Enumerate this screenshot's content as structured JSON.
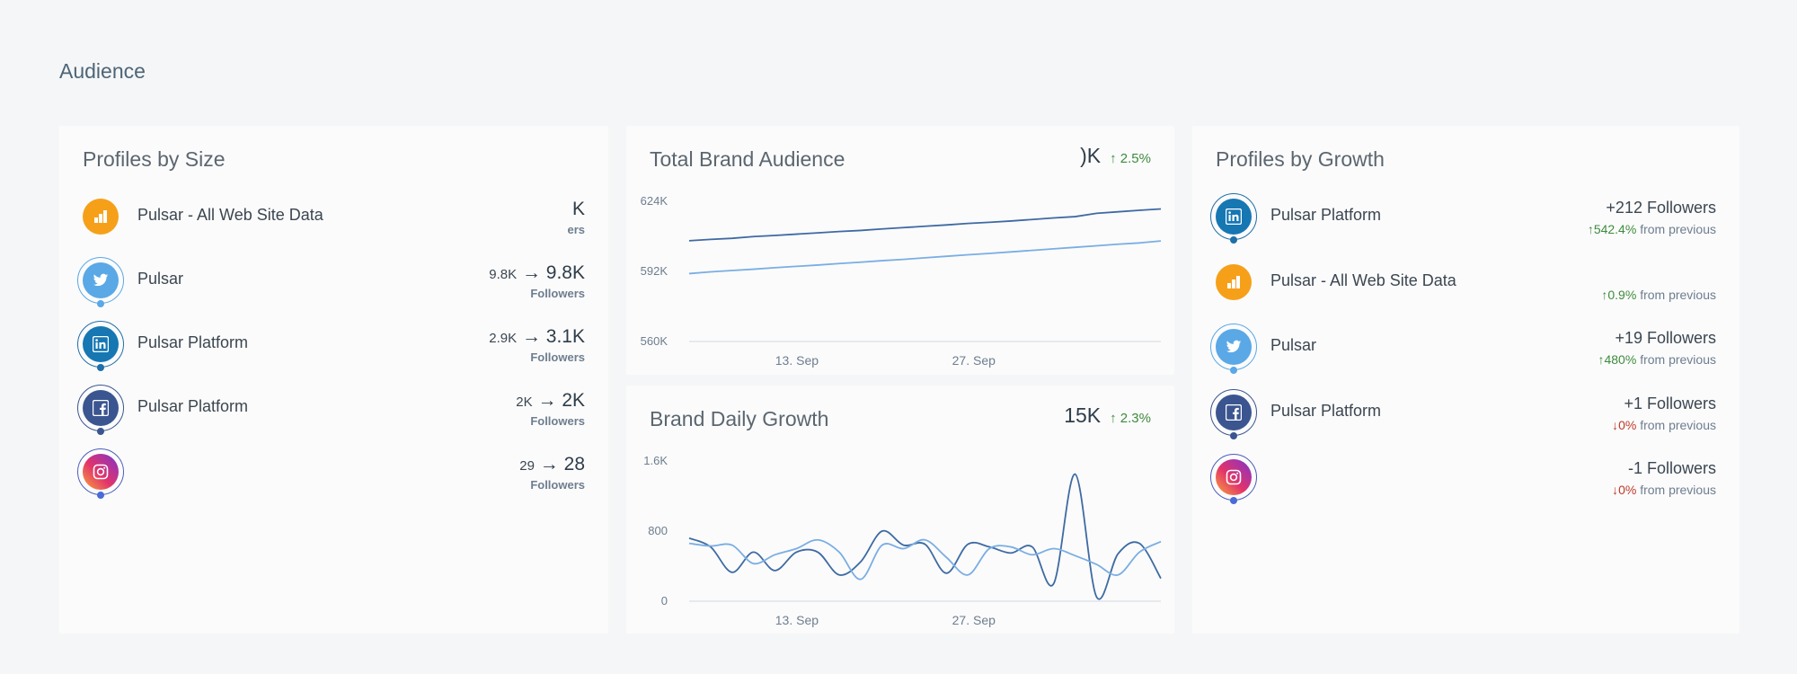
{
  "section_title": "Audience",
  "colors": {
    "line_dark": "#3e6aa3",
    "line_light": "#7aaee3",
    "up": "#3e8b3e",
    "down": "#c0392b"
  },
  "profiles_by_size": {
    "title": "Profiles by Size",
    "rows": [
      {
        "name": "Pulsar - All Web Site Data",
        "network": "analytics-icon",
        "old": "",
        "arrow": "",
        "new": "K",
        "sub": "ers"
      },
      {
        "name": "Pulsar",
        "network": "twitter-icon",
        "old": "9.8K",
        "arrow": "→",
        "new": "9.8K",
        "sub": "Followers"
      },
      {
        "name": "Pulsar Platform",
        "network": "linkedin-icon",
        "old": "2.9K",
        "arrow": "→",
        "new": "3.1K",
        "sub": "Followers"
      },
      {
        "name": "Pulsar Platform",
        "network": "facebook-icon",
        "old": "2K",
        "arrow": "→",
        "new": "2K",
        "sub": "Followers"
      },
      {
        "name": "",
        "network": "instagram-icon",
        "old": "29",
        "arrow": "→",
        "new": "28",
        "sub": "Followers"
      }
    ]
  },
  "total_brand_audience": {
    "title": "Total Brand Audience",
    "value": ")K",
    "change": "2.5%",
    "change_arrow": "↑"
  },
  "brand_daily_growth": {
    "title": "Brand Daily Growth",
    "value": "15K",
    "change": "2.3%",
    "change_arrow": "↑"
  },
  "profiles_by_growth": {
    "title": "Profiles by Growth",
    "rows": [
      {
        "name": "Pulsar Platform",
        "network": "linkedin-icon",
        "main": "+212 Followers",
        "arrow": "↑",
        "pct": "542.4%",
        "from": "from previous",
        "dir": "up"
      },
      {
        "name": "Pulsar - All Web Site Data",
        "network": "analytics-icon",
        "main": "",
        "arrow": "↑",
        "pct": "0.9%",
        "from": "from previous",
        "dir": "up"
      },
      {
        "name": "Pulsar",
        "network": "twitter-icon",
        "main": "+19 Followers",
        "arrow": "↑",
        "pct": "480%",
        "from": "from previous",
        "dir": "up"
      },
      {
        "name": "Pulsar Platform",
        "network": "facebook-icon",
        "main": "+1 Followers",
        "arrow": "↓",
        "pct": "0%",
        "from": "from previous",
        "dir": "down"
      },
      {
        "name": "",
        "network": "instagram-icon",
        "main": "-1 Followers",
        "arrow": "↓",
        "pct": "0%",
        "from": "from previous",
        "dir": "down"
      }
    ]
  },
  "chart_data": [
    {
      "type": "line",
      "x_labels": [
        "13. Sep",
        "27. Sep"
      ],
      "yticks": [
        "624K",
        "592K",
        "560K"
      ],
      "ylim": [
        560,
        624
      ],
      "x": [
        0,
        2,
        4,
        6,
        8,
        10,
        12,
        14,
        16,
        18,
        20,
        22,
        24,
        26,
        28,
        30,
        32,
        34,
        36,
        38,
        40,
        42,
        44
      ],
      "series": [
        {
          "values": [
            606,
            606.6,
            607.1,
            607.9,
            608.4,
            609,
            609.6,
            610.2,
            610.7,
            611.4,
            612,
            612.6,
            613.2,
            613.9,
            614.4,
            615,
            615.7,
            616.4,
            617,
            618.5,
            619.2,
            619.9,
            620.5
          ]
        },
        {
          "values": [
            591,
            591.8,
            592.4,
            593,
            593.7,
            594.3,
            594.9,
            595.6,
            596.2,
            596.9,
            597.5,
            598.2,
            598.9,
            599.6,
            600.2,
            600.9,
            601.6,
            602.3,
            603,
            603.7,
            604.4,
            605,
            605.9
          ]
        }
      ]
    },
    {
      "type": "line",
      "x_labels": [
        "13. Sep",
        "27. Sep"
      ],
      "yticks": [
        "1.6K",
        "800",
        "0"
      ],
      "ylim": [
        0,
        1600
      ],
      "x": [
        0,
        2,
        4,
        6,
        8,
        10,
        12,
        14,
        16,
        18,
        20,
        22,
        24,
        26,
        28,
        30,
        32,
        34,
        36,
        38,
        40,
        42,
        44
      ],
      "series": [
        {
          "values": [
            720,
            620,
            330,
            560,
            350,
            560,
            560,
            300,
            450,
            800,
            640,
            650,
            320,
            650,
            620,
            550,
            620,
            200,
            1450,
            50,
            540,
            660,
            260
          ]
        },
        {
          "values": [
            660,
            630,
            640,
            430,
            530,
            600,
            700,
            560,
            250,
            640,
            600,
            700,
            500,
            300,
            600,
            620,
            530,
            600,
            520,
            420,
            300,
            560,
            680
          ]
        }
      ]
    }
  ]
}
